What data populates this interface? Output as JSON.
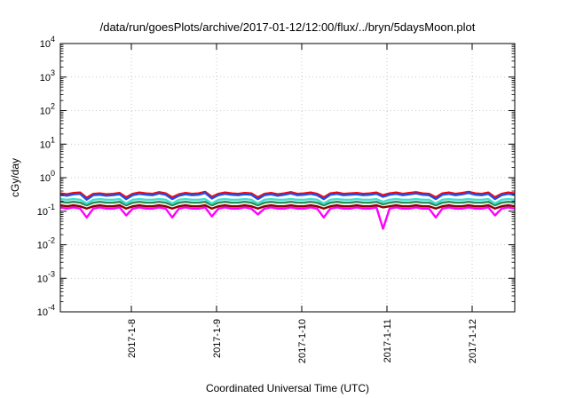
{
  "chart_data": {
    "type": "line",
    "title": "/data/run/goesPlots/archive/2017-01-12/12:00/flux/../bryn/5daysMoon.plot",
    "xlabel": "Coordinated Universal Time (UTC)",
    "ylabel": "cGy/day",
    "yscale": "log",
    "ylim": [
      0.0001,
      10000
    ],
    "xlim": [
      "2017-01-07 04:00",
      "2017-01-12 12:00"
    ],
    "y_ticks": [
      {
        "base": "10",
        "exp": "-4",
        "value": 0.0001
      },
      {
        "base": "10",
        "exp": "-3",
        "value": 0.001
      },
      {
        "base": "10",
        "exp": "-2",
        "value": 0.01
      },
      {
        "base": "10",
        "exp": "-1",
        "value": 0.1
      },
      {
        "base": "10",
        "exp": "0",
        "value": 1
      },
      {
        "base": "10",
        "exp": "1",
        "value": 10
      },
      {
        "base": "10",
        "exp": "2",
        "value": 100
      },
      {
        "base": "10",
        "exp": "3",
        "value": 1000
      },
      {
        "base": "10",
        "exp": "4",
        "value": 10000
      }
    ],
    "x_ticks": [
      "2017-1-8",
      "2017-1-9",
      "2017-1-10",
      "2017-1-11",
      "2017-1-12"
    ],
    "grid": true,
    "series": [
      {
        "color": "#ff00ff",
        "values": [
          0.13,
          0.12,
          0.13,
          0.12,
          0.065,
          0.12,
          0.13,
          0.12,
          0.12,
          0.13,
          0.075,
          0.12,
          0.13,
          0.12,
          0.12,
          0.13,
          0.12,
          0.065,
          0.12,
          0.13,
          0.12,
          0.12,
          0.13,
          0.07,
          0.12,
          0.13,
          0.12,
          0.12,
          0.13,
          0.12,
          0.08,
          0.12,
          0.13,
          0.12,
          0.12,
          0.13,
          0.12,
          0.12,
          0.13,
          0.12,
          0.065,
          0.12,
          0.13,
          0.12,
          0.12,
          0.13,
          0.12,
          0.12,
          0.13,
          0.03,
          0.12,
          0.13,
          0.12,
          0.12,
          0.13,
          0.12,
          0.12,
          0.065,
          0.12,
          0.13,
          0.12,
          0.12,
          0.13,
          0.12,
          0.12,
          0.13,
          0.075,
          0.12,
          0.13,
          0.12
        ]
      },
      {
        "color": "#8b0000",
        "values": [
          0.15,
          0.14,
          0.15,
          0.14,
          0.12,
          0.14,
          0.15,
          0.14,
          0.14,
          0.15,
          0.12,
          0.14,
          0.15,
          0.14,
          0.14,
          0.15,
          0.14,
          0.12,
          0.14,
          0.15,
          0.14,
          0.14,
          0.15,
          0.12,
          0.14,
          0.15,
          0.14,
          0.14,
          0.15,
          0.14,
          0.12,
          0.14,
          0.15,
          0.14,
          0.14,
          0.15,
          0.14,
          0.14,
          0.15,
          0.14,
          0.12,
          0.14,
          0.15,
          0.14,
          0.14,
          0.15,
          0.14,
          0.14,
          0.15,
          0.13,
          0.14,
          0.15,
          0.14,
          0.14,
          0.15,
          0.14,
          0.14,
          0.12,
          0.14,
          0.15,
          0.14,
          0.14,
          0.15,
          0.14,
          0.14,
          0.15,
          0.12,
          0.14,
          0.15,
          0.14
        ]
      },
      {
        "color": "#2e8b57",
        "values": [
          0.19,
          0.18,
          0.19,
          0.18,
          0.15,
          0.18,
          0.19,
          0.18,
          0.18,
          0.19,
          0.15,
          0.18,
          0.19,
          0.18,
          0.18,
          0.19,
          0.18,
          0.15,
          0.18,
          0.19,
          0.18,
          0.18,
          0.19,
          0.15,
          0.18,
          0.19,
          0.18,
          0.18,
          0.19,
          0.18,
          0.15,
          0.18,
          0.19,
          0.18,
          0.18,
          0.19,
          0.18,
          0.18,
          0.19,
          0.18,
          0.15,
          0.18,
          0.19,
          0.18,
          0.18,
          0.19,
          0.18,
          0.18,
          0.19,
          0.16,
          0.18,
          0.19,
          0.18,
          0.18,
          0.19,
          0.18,
          0.18,
          0.15,
          0.18,
          0.19,
          0.18,
          0.18,
          0.19,
          0.18,
          0.18,
          0.19,
          0.15,
          0.18,
          0.19,
          0.18
        ]
      },
      {
        "color": "#40e0d0",
        "values": [
          0.23,
          0.22,
          0.23,
          0.22,
          0.17,
          0.22,
          0.23,
          0.22,
          0.22,
          0.23,
          0.17,
          0.22,
          0.23,
          0.22,
          0.22,
          0.23,
          0.22,
          0.17,
          0.22,
          0.23,
          0.22,
          0.22,
          0.23,
          0.17,
          0.22,
          0.23,
          0.22,
          0.22,
          0.23,
          0.22,
          0.17,
          0.22,
          0.23,
          0.22,
          0.22,
          0.23,
          0.22,
          0.22,
          0.23,
          0.22,
          0.17,
          0.22,
          0.23,
          0.22,
          0.22,
          0.23,
          0.22,
          0.22,
          0.23,
          0.19,
          0.22,
          0.23,
          0.22,
          0.22,
          0.23,
          0.22,
          0.22,
          0.17,
          0.22,
          0.23,
          0.22,
          0.22,
          0.23,
          0.22,
          0.22,
          0.23,
          0.17,
          0.22,
          0.23,
          0.22
        ]
      },
      {
        "color": "#ff0000",
        "values": [
          0.34,
          0.32,
          0.35,
          0.36,
          0.25,
          0.33,
          0.34,
          0.32,
          0.33,
          0.35,
          0.26,
          0.33,
          0.36,
          0.34,
          0.33,
          0.37,
          0.34,
          0.26,
          0.32,
          0.35,
          0.33,
          0.34,
          0.38,
          0.27,
          0.33,
          0.36,
          0.34,
          0.33,
          0.35,
          0.34,
          0.26,
          0.33,
          0.35,
          0.32,
          0.34,
          0.37,
          0.33,
          0.34,
          0.36,
          0.33,
          0.26,
          0.34,
          0.36,
          0.33,
          0.34,
          0.35,
          0.33,
          0.34,
          0.36,
          0.3,
          0.34,
          0.36,
          0.33,
          0.35,
          0.37,
          0.34,
          0.33,
          0.26,
          0.34,
          0.36,
          0.33,
          0.35,
          0.38,
          0.34,
          0.33,
          0.36,
          0.26,
          0.33,
          0.36,
          0.34
        ]
      },
      {
        "color": "#1e50e6",
        "values": [
          0.31,
          0.29,
          0.32,
          0.33,
          0.22,
          0.3,
          0.31,
          0.29,
          0.3,
          0.32,
          0.23,
          0.3,
          0.33,
          0.31,
          0.3,
          0.34,
          0.31,
          0.23,
          0.29,
          0.32,
          0.3,
          0.31,
          0.35,
          0.24,
          0.3,
          0.33,
          0.31,
          0.3,
          0.32,
          0.31,
          0.23,
          0.3,
          0.32,
          0.29,
          0.31,
          0.34,
          0.3,
          0.31,
          0.33,
          0.3,
          0.23,
          0.31,
          0.33,
          0.3,
          0.31,
          0.32,
          0.3,
          0.31,
          0.33,
          0.27,
          0.31,
          0.33,
          0.3,
          0.32,
          0.34,
          0.31,
          0.3,
          0.23,
          0.31,
          0.33,
          0.3,
          0.32,
          0.35,
          0.31,
          0.3,
          0.33,
          0.23,
          0.3,
          0.33,
          0.31
        ]
      }
    ]
  }
}
